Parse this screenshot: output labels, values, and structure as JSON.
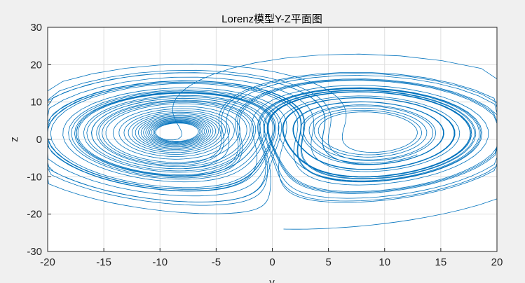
{
  "chart_data": {
    "type": "line",
    "title": "Lorenz模型Y-Z平面图",
    "xlabel": "y",
    "ylabel": "z",
    "xlim": [
      -20,
      20
    ],
    "ylim": [
      -30,
      30
    ],
    "xticks": [
      "-20",
      "-15",
      "-10",
      "-5",
      "0",
      "5",
      "10",
      "15",
      "20"
    ],
    "yticks": [
      "30",
      "20",
      "10",
      "0",
      "-10",
      "-20",
      "-30"
    ],
    "grid": true,
    "series_color": "#0072bd",
    "series": [
      {
        "description": "Lorenz trajectory projected on Y-Z plane (two-lobe butterfly)"
      }
    ]
  },
  "colors": {
    "figure_background": "#f0f0f0",
    "axes_background": "#ffffff",
    "grid": "#dfdfdf",
    "axis": "#262626",
    "line": "#0072bd"
  }
}
